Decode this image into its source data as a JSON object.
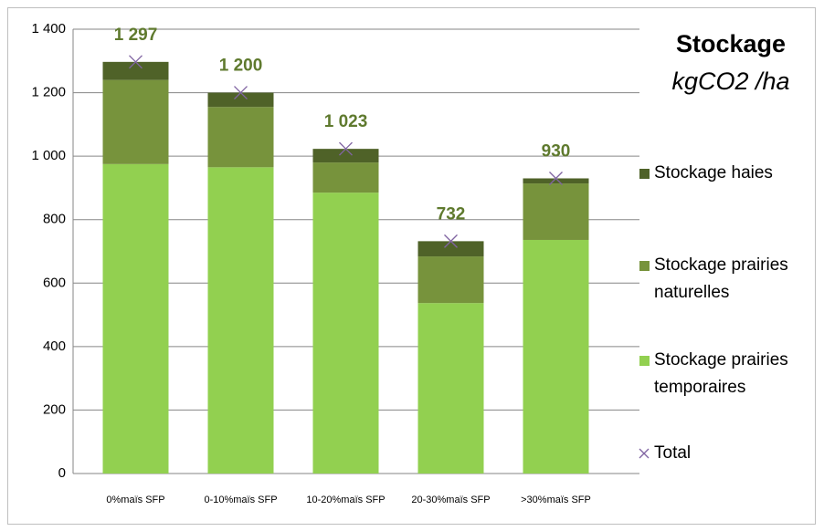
{
  "chart_data": {
    "type": "stacked_bar",
    "title": "Stockage",
    "subtitle": "kgCO2 /ha",
    "categories": [
      "0%maïs SFP",
      "0-10%maïs SFP",
      "10-20%maïs SFP",
      "20-30%maïs SFP",
      ">30%maïs SFP"
    ],
    "series": [
      {
        "name": "Stockage prairies temporaires",
        "color": "#92d050",
        "values": [
          975,
          965,
          885,
          537,
          736
        ]
      },
      {
        "name": "Stockage prairies naturelles",
        "color": "#77933c",
        "values": [
          265,
          190,
          95,
          147,
          178
        ]
      },
      {
        "name": "Stockage haies",
        "color": "#4f6228",
        "values": [
          57,
          45,
          43,
          48,
          16
        ]
      }
    ],
    "total": {
      "name": "Total",
      "color": "#8064a2",
      "values": [
        1297,
        1200,
        1023,
        732,
        930
      ],
      "value_labels": [
        "1 297",
        "1 200",
        "1 023",
        "732",
        "930"
      ]
    },
    "ylim": [
      0,
      1400
    ],
    "yticks": [
      0,
      200,
      400,
      600,
      800,
      {
        "value": 1000,
        "label": "1 000"
      },
      {
        "value": 1200,
        "label": "1 200"
      },
      {
        "value": 1400,
        "label": "1 400"
      }
    ],
    "grid": true
  }
}
